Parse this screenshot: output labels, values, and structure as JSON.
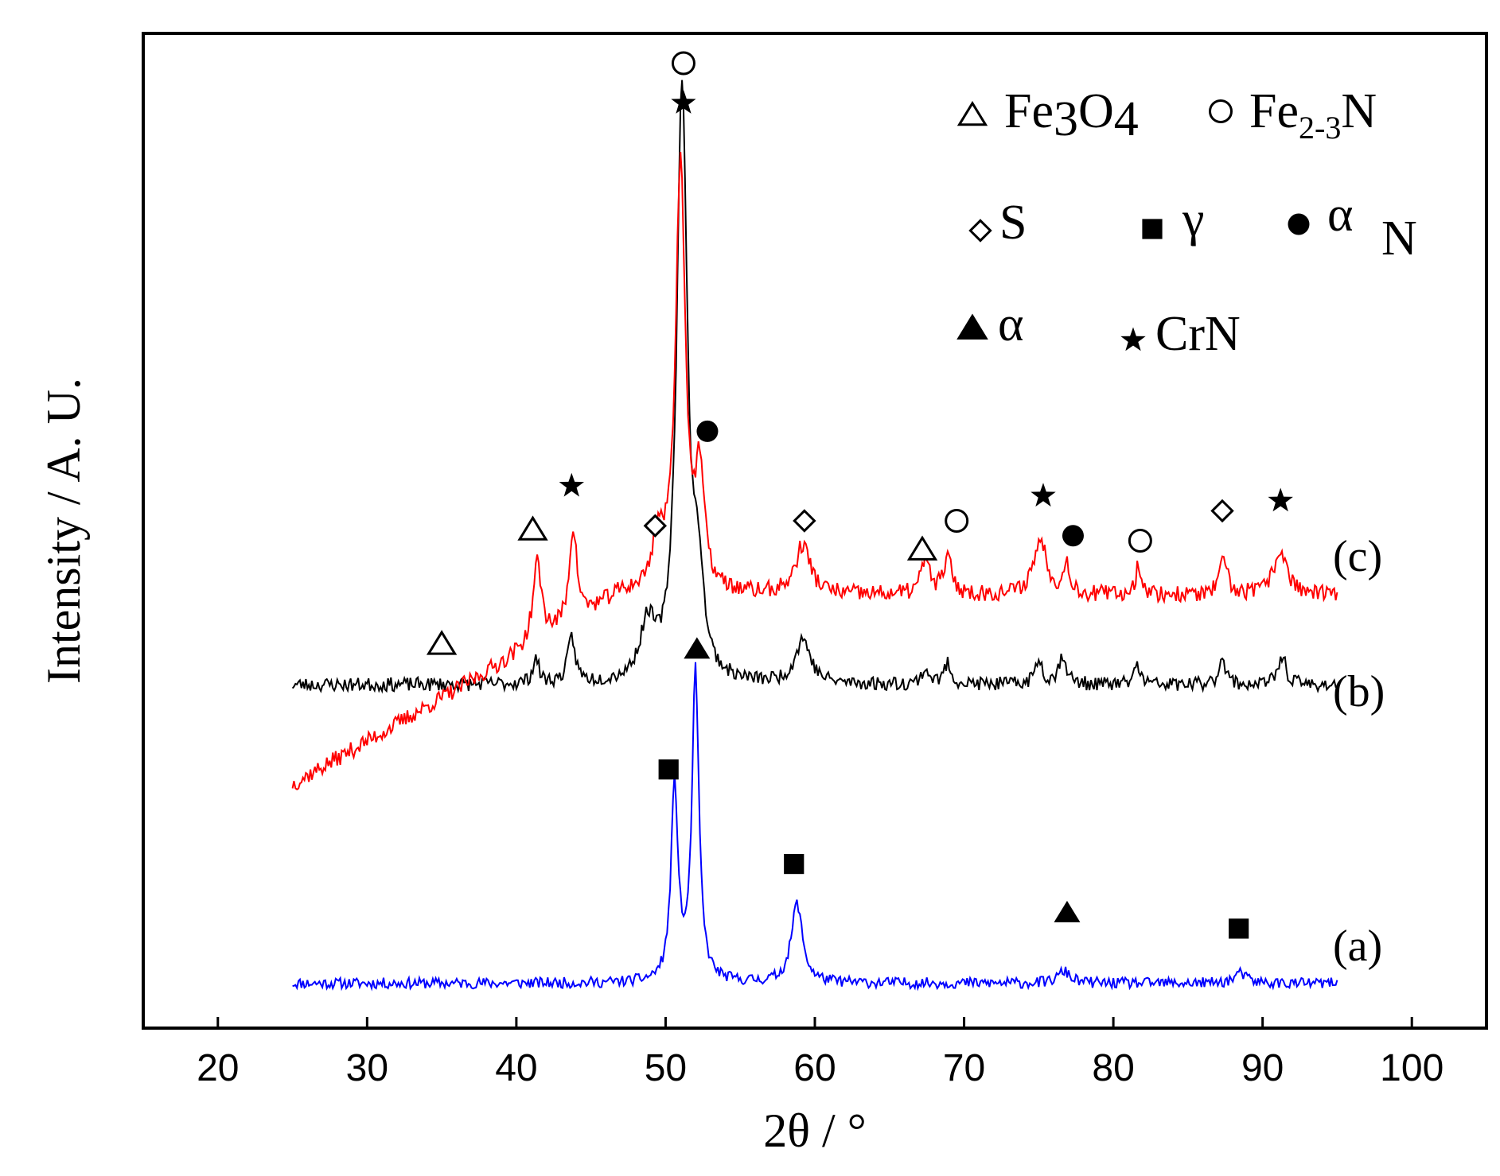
{
  "chart_data": {
    "type": "line",
    "title": "",
    "xlabel": "2θ / °",
    "ylabel": "Intensity / A. U.",
    "xlim": [
      15,
      105
    ],
    "ylim": [
      0,
      10
    ],
    "x_ticks": [
      20,
      30,
      40,
      50,
      60,
      70,
      80,
      90,
      100
    ],
    "grid": false,
    "legend_placement": "top-right",
    "legend": [
      {
        "symbol": "open-triangle",
        "label": "Fe3O4",
        "parts": {
          "a": "Fe",
          "b": "3",
          "c": "O",
          "d": "4"
        }
      },
      {
        "symbol": "open-circle",
        "label": "Fe2-3N",
        "parts": {
          "a": "Fe",
          "b": "2-3",
          "c": "N"
        }
      },
      {
        "symbol": "open-diamond",
        "label": "S"
      },
      {
        "symbol": "filled-square",
        "label": "γ"
      },
      {
        "symbol": "filled-circle",
        "label": "α",
        "sub": "N"
      },
      {
        "symbol": "filled-triangle",
        "label": "α"
      },
      {
        "symbol": "star",
        "label": "CrN"
      }
    ],
    "series": [
      {
        "name": "(a)",
        "color": "#0000ff",
        "baseline": 0.45,
        "noise": 0.055,
        "seed": 11,
        "peaks": [
          {
            "x": 50.6,
            "h": 1.95,
            "w": 0.28
          },
          {
            "x": 52.0,
            "h": 3.1,
            "w": 0.28
          },
          {
            "x": 58.8,
            "h": 0.8,
            "w": 0.45
          },
          {
            "x": 76.7,
            "h": 0.12,
            "w": 0.5
          },
          {
            "x": 88.5,
            "h": 0.1,
            "w": 0.5
          }
        ]
      },
      {
        "name": "(b)",
        "color": "#000000",
        "baseline": 3.45,
        "noise": 0.07,
        "seed": 23,
        "peaks": [
          {
            "x": 41.3,
            "h": 0.25,
            "w": 0.25
          },
          {
            "x": 43.7,
            "h": 0.45,
            "w": 0.3
          },
          {
            "x": 48.8,
            "h": 0.55,
            "w": 0.6
          },
          {
            "x": 51.1,
            "h": 6.0,
            "w": 0.42
          },
          {
            "x": 52.2,
            "h": 0.9,
            "w": 0.4
          },
          {
            "x": 59.2,
            "h": 0.45,
            "w": 0.6
          },
          {
            "x": 67.4,
            "h": 0.15,
            "w": 0.3
          },
          {
            "x": 68.9,
            "h": 0.2,
            "w": 0.3
          },
          {
            "x": 75.0,
            "h": 0.25,
            "w": 0.3
          },
          {
            "x": 76.6,
            "h": 0.3,
            "w": 0.3
          },
          {
            "x": 81.6,
            "h": 0.2,
            "w": 0.25
          },
          {
            "x": 87.3,
            "h": 0.3,
            "w": 0.25
          },
          {
            "x": 91.3,
            "h": 0.3,
            "w": 0.3
          }
        ]
      },
      {
        "name": "(c)",
        "color": "#ff0000",
        "baseline": 4.35,
        "start_level": 2.45,
        "ramp_end": 47.0,
        "noise": 0.085,
        "seed": 37,
        "peaks": [
          {
            "x": 41.4,
            "h": 0.8,
            "w": 0.35
          },
          {
            "x": 43.8,
            "h": 0.95,
            "w": 0.3
          },
          {
            "x": 49.5,
            "h": 0.5,
            "w": 0.45
          },
          {
            "x": 51.0,
            "h": 4.3,
            "w": 0.4
          },
          {
            "x": 52.3,
            "h": 1.1,
            "w": 0.35
          },
          {
            "x": 59.2,
            "h": 0.5,
            "w": 0.6
          },
          {
            "x": 67.4,
            "h": 0.35,
            "w": 0.35
          },
          {
            "x": 68.9,
            "h": 0.35,
            "w": 0.35
          },
          {
            "x": 75.1,
            "h": 0.55,
            "w": 0.55
          },
          {
            "x": 76.9,
            "h": 0.3,
            "w": 0.25
          },
          {
            "x": 81.7,
            "h": 0.3,
            "w": 0.25
          },
          {
            "x": 87.4,
            "h": 0.35,
            "w": 0.3
          },
          {
            "x": 91.2,
            "h": 0.45,
            "w": 0.55
          }
        ]
      }
    ],
    "peak_markers": [
      {
        "symbol": "filled-square",
        "x": 50.2,
        "y": 2.6
      },
      {
        "symbol": "filled-square",
        "x": 58.6,
        "y": 1.65
      },
      {
        "symbol": "filled-triangle",
        "x": 76.9,
        "y": 1.15
      },
      {
        "symbol": "filled-square",
        "x": 88.4,
        "y": 1.0
      },
      {
        "symbol": "open-triangle",
        "x": 35.0,
        "y": 3.85
      },
      {
        "symbol": "filled-triangle",
        "x": 52.1,
        "y": 3.8
      },
      {
        "symbol": "open-triangle",
        "x": 41.1,
        "y": 5.0
      },
      {
        "symbol": "star",
        "x": 43.7,
        "y": 5.45
      },
      {
        "symbol": "open-diamond",
        "x": 49.3,
        "y": 5.05
      },
      {
        "symbol": "open-circle",
        "x": 51.2,
        "y": 9.7
      },
      {
        "symbol": "star",
        "x": 51.2,
        "y": 9.3
      },
      {
        "symbol": "filled-circle",
        "x": 52.8,
        "y": 6.0
      },
      {
        "symbol": "open-diamond",
        "x": 59.3,
        "y": 5.1
      },
      {
        "symbol": "open-triangle",
        "x": 67.2,
        "y": 4.8
      },
      {
        "symbol": "open-circle",
        "x": 69.5,
        "y": 5.1
      },
      {
        "symbol": "star",
        "x": 75.3,
        "y": 5.35
      },
      {
        "symbol": "filled-circle",
        "x": 77.3,
        "y": 4.95
      },
      {
        "symbol": "open-circle",
        "x": 81.8,
        "y": 4.9
      },
      {
        "symbol": "open-diamond",
        "x": 87.3,
        "y": 5.2
      },
      {
        "symbol": "star",
        "x": 91.2,
        "y": 5.3
      }
    ]
  }
}
